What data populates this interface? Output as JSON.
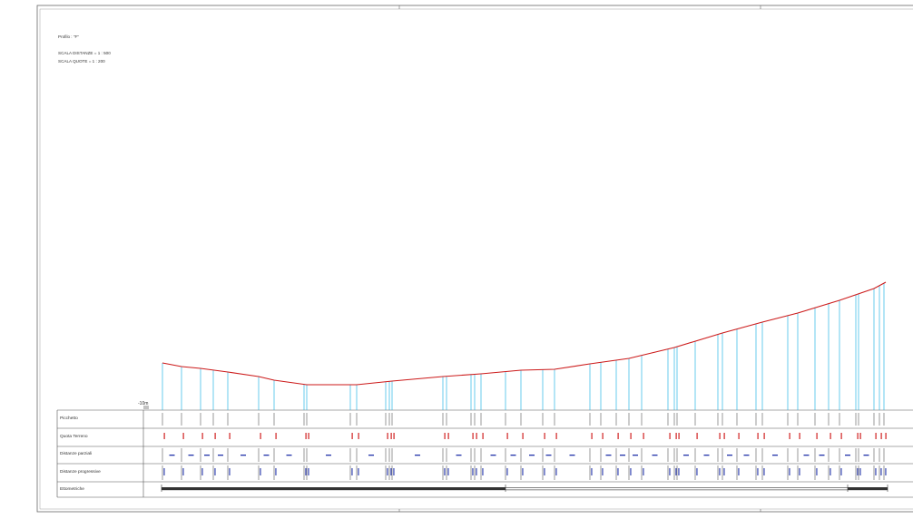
{
  "header": {
    "title": "Profilo : \"F\"",
    "scale_distances": "SCALA DISTANZE = 1 : 500",
    "scale_heights": "SCALA QUOTE    = 1 : 200"
  },
  "reference_label": "-10m",
  "rows": {
    "picchetto": "Picchetto",
    "quota_terreno": "Quota Terreno",
    "distanze_parziali": "Distanze parziali",
    "distanze_progressive": "Distanze progressive",
    "ettometriche": "Ettometriche"
  },
  "colors": {
    "terrain_line": "#cc1a1a",
    "station_line": "#29b6e6",
    "quota_text": "#d02020",
    "distance_text": "#2233aa",
    "frame": "#555555"
  }
}
